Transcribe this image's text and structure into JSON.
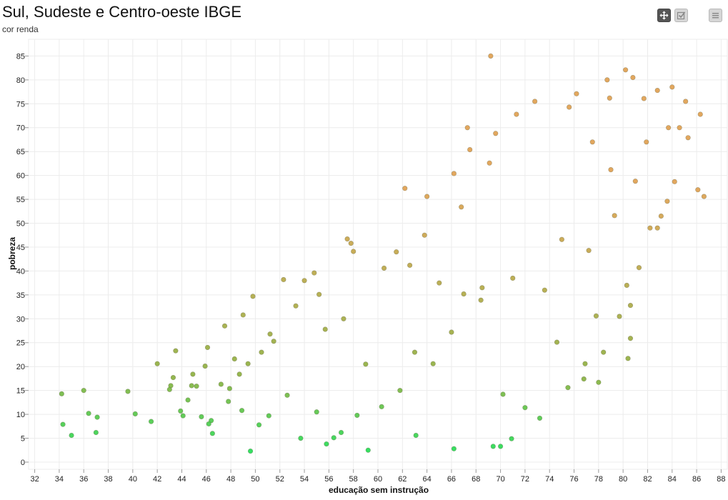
{
  "chart_data": {
    "type": "scatter",
    "title": "Sul, Sudeste e Centro-oeste IBGE",
    "subtitle": "cor renda",
    "xlabel": "educação sem instrução",
    "ylabel": "pobreza",
    "xlim": [
      31.5,
      88.5
    ],
    "ylim": [
      -1.5,
      88.5
    ],
    "x_ticks": [
      32,
      34,
      36,
      38,
      40,
      42,
      44,
      46,
      48,
      50,
      52,
      54,
      56,
      58,
      60,
      62,
      64,
      66,
      68,
      70,
      72,
      74,
      76,
      78,
      80,
      82,
      84,
      86,
      88
    ],
    "y_ticks": [
      0,
      5,
      10,
      15,
      20,
      25,
      30,
      35,
      40,
      45,
      50,
      55,
      60,
      65,
      70,
      75,
      80,
      85
    ],
    "grid": true,
    "colors": {
      "low": "#22dd55",
      "mid": "#8cb040",
      "high": "#e0a050",
      "grid": "#ececec"
    },
    "points": [
      [
        34.2,
        14.3
      ],
      [
        34.3,
        7.9
      ],
      [
        35.0,
        5.6
      ],
      [
        36.0,
        15.0
      ],
      [
        36.4,
        10.2
      ],
      [
        37.0,
        6.2
      ],
      [
        37.1,
        9.4
      ],
      [
        39.6,
        14.8
      ],
      [
        40.2,
        10.1
      ],
      [
        41.5,
        8.5
      ],
      [
        42.0,
        20.6
      ],
      [
        43.1,
        16.0
      ],
      [
        43.0,
        15.2
      ],
      [
        43.3,
        17.7
      ],
      [
        43.5,
        23.3
      ],
      [
        43.9,
        10.7
      ],
      [
        44.1,
        9.7
      ],
      [
        44.5,
        13.0
      ],
      [
        44.8,
        16.0
      ],
      [
        44.9,
        18.4
      ],
      [
        45.2,
        15.9
      ],
      [
        45.9,
        20.1
      ],
      [
        46.1,
        24.0
      ],
      [
        46.4,
        8.7
      ],
      [
        46.2,
        8.0
      ],
      [
        46.5,
        6.0
      ],
      [
        45.6,
        9.5
      ],
      [
        47.2,
        16.3
      ],
      [
        47.9,
        15.4
      ],
      [
        48.3,
        21.6
      ],
      [
        48.7,
        18.4
      ],
      [
        49.4,
        20.6
      ],
      [
        49.6,
        2.3
      ],
      [
        49.8,
        34.7
      ],
      [
        49.0,
        30.8
      ],
      [
        47.5,
        28.5
      ],
      [
        50.5,
        23.0
      ],
      [
        51.2,
        26.8
      ],
      [
        51.5,
        25.3
      ],
      [
        52.3,
        38.2
      ],
      [
        53.3,
        32.7
      ],
      [
        54.0,
        38.0
      ],
      [
        54.8,
        39.6
      ],
      [
        55.2,
        35.1
      ],
      [
        55.8,
        3.8
      ],
      [
        55.7,
        27.8
      ],
      [
        56.4,
        5.1
      ],
      [
        57.2,
        30.0
      ],
      [
        58.0,
        44.1
      ],
      [
        59.2,
        2.5
      ],
      [
        57.5,
        46.7
      ],
      [
        57.8,
        45.8
      ],
      [
        60.5,
        40.6
      ],
      [
        61.5,
        44.0
      ],
      [
        62.2,
        57.3
      ],
      [
        62.6,
        41.2
      ],
      [
        63.1,
        5.6
      ],
      [
        63.8,
        47.5
      ],
      [
        64.0,
        55.6
      ],
      [
        65.0,
        37.5
      ],
      [
        66.2,
        60.4
      ],
      [
        66.2,
        2.8
      ],
      [
        66.8,
        53.4
      ],
      [
        67.3,
        70.0
      ],
      [
        67.5,
        65.4
      ],
      [
        68.4,
        33.9
      ],
      [
        69.1,
        62.6
      ],
      [
        69.2,
        85.0
      ],
      [
        69.4,
        3.3
      ],
      [
        69.6,
        68.8
      ],
      [
        70.0,
        3.3
      ],
      [
        70.2,
        14.2
      ],
      [
        70.9,
        4.9
      ],
      [
        71.3,
        72.8
      ],
      [
        72.0,
        11.4
      ],
      [
        72.8,
        75.5
      ],
      [
        73.2,
        9.2
      ],
      [
        74.6,
        25.1
      ],
      [
        75.5,
        15.6
      ],
      [
        75.6,
        74.3
      ],
      [
        76.2,
        77.1
      ],
      [
        76.8,
        17.4
      ],
      [
        76.9,
        20.6
      ],
      [
        77.5,
        67.0
      ],
      [
        77.8,
        30.6
      ],
      [
        78.0,
        16.7
      ],
      [
        78.4,
        23.0
      ],
      [
        78.7,
        80.0
      ],
      [
        78.9,
        76.2
      ],
      [
        79.3,
        51.6
      ],
      [
        79.7,
        30.5
      ],
      [
        80.2,
        82.1
      ],
      [
        80.3,
        37.0
      ],
      [
        80.4,
        21.7
      ],
      [
        80.6,
        25.9
      ],
      [
        80.6,
        32.8
      ],
      [
        80.8,
        80.5
      ],
      [
        81.3,
        40.7
      ],
      [
        81.7,
        76.1
      ],
      [
        81.9,
        67.0
      ],
      [
        82.2,
        49.0
      ],
      [
        82.8,
        49.0
      ],
      [
        82.8,
        77.8
      ],
      [
        83.1,
        51.5
      ],
      [
        83.6,
        54.6
      ],
      [
        83.7,
        70.0
      ],
      [
        84.0,
        78.5
      ],
      [
        84.2,
        58.7
      ],
      [
        84.6,
        70.0
      ],
      [
        85.1,
        75.5
      ],
      [
        85.3,
        67.9
      ],
      [
        86.1,
        57.0
      ],
      [
        86.3,
        72.8
      ],
      [
        86.6,
        55.6
      ],
      [
        81.0,
        58.8
      ],
      [
        79.0,
        61.2
      ],
      [
        77.2,
        44.3
      ],
      [
        75.0,
        46.6
      ],
      [
        73.6,
        36.0
      ],
      [
        71.0,
        38.5
      ],
      [
        68.5,
        36.5
      ],
      [
        67.0,
        35.2
      ],
      [
        66.0,
        27.2
      ],
      [
        64.5,
        20.6
      ],
      [
        63.0,
        23.0
      ],
      [
        61.8,
        15.0
      ],
      [
        60.3,
        11.6
      ],
      [
        59.0,
        20.5
      ],
      [
        58.3,
        9.8
      ],
      [
        57.0,
        6.2
      ],
      [
        55.0,
        10.5
      ],
      [
        53.7,
        5.0
      ],
      [
        52.6,
        14.0
      ],
      [
        51.1,
        9.7
      ],
      [
        50.3,
        7.8
      ],
      [
        48.9,
        10.8
      ],
      [
        47.8,
        12.7
      ]
    ]
  }
}
